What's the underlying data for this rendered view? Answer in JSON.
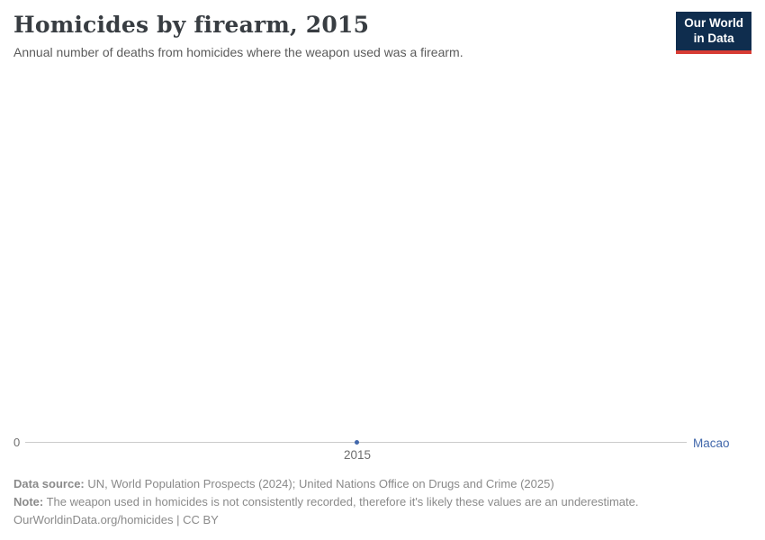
{
  "header": {
    "title": "Homicides by firearm, 2015",
    "subtitle": "Annual number of deaths from homicides where the weapon used was a firearm.",
    "logo": {
      "line1": "Our World",
      "line2": "in Data"
    }
  },
  "chart": {
    "y_axis_label": "0",
    "x_tick_label": "2015",
    "entity_label": "Macao"
  },
  "footer": {
    "data_source_label": "Data source:",
    "data_source_text": " UN, World Population Prospects (2024); United Nations Office on Drugs and Crime (2025)",
    "note_label": "Note:",
    "note_text": " The weapon used in homicides is not consistently recorded, therefore it's likely these values are an underestimate.",
    "license_text": "OurWorldinData.org/homicides | CC BY"
  },
  "colors": {
    "accent_blue": "#4268ab",
    "logo_navy": "#0f2d4e",
    "logo_red": "#d73c34",
    "axis_line": "#cccccc"
  },
  "chart_data": {
    "type": "line",
    "title": "Homicides by firearm, 2015",
    "x": [
      2015
    ],
    "series": [
      {
        "name": "Macao",
        "values": [
          0
        ]
      }
    ],
    "xlabel": "",
    "ylabel": "",
    "ylim": [
      0,
      0
    ],
    "xticks": [
      "2015"
    ],
    "yticks": [
      "0"
    ],
    "grid": false,
    "legend_position": "right-of-axis"
  }
}
